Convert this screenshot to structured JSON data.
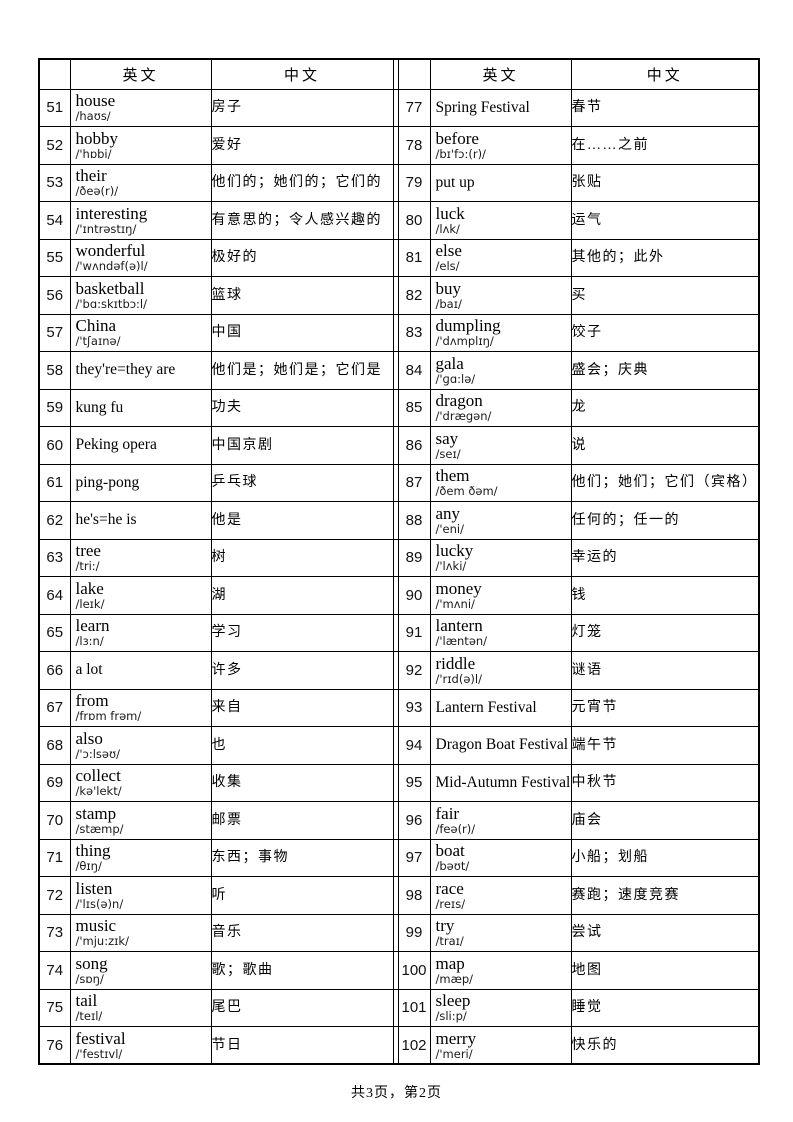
{
  "colors": {
    "background": "#ffffff",
    "border": "#000000",
    "text": "#000000"
  },
  "table": {
    "header": {
      "en": "英文",
      "cn": "中文"
    },
    "left_rows": [
      {
        "n": "51",
        "word": "house",
        "phon": "/haʊs/",
        "cn": "房子"
      },
      {
        "n": "52",
        "word": "hobby",
        "phon": "/'hɒbi/",
        "cn": "爱好"
      },
      {
        "n": "53",
        "word": "their",
        "phon": "/ðeə(r)/",
        "cn": "他们的；她们的；它们的"
      },
      {
        "n": "54",
        "word": "interesting",
        "phon": "/'ɪntrəstɪŋ/",
        "cn": "有意思的；令人感兴趣的"
      },
      {
        "n": "55",
        "word": "wonderful",
        "phon": "/'wʌndəf(ə)l/",
        "cn": "极好的"
      },
      {
        "n": "56",
        "word": "basketball",
        "phon": "/'bɑ:skɪtbɔ:l/",
        "cn": "篮球"
      },
      {
        "n": "57",
        "word": "China",
        "phon": "/'tʃaɪnə/",
        "cn": "中国"
      },
      {
        "n": "58",
        "word": "they're=they are",
        "phon": "",
        "cn": "他们是；她们是；它们是"
      },
      {
        "n": "59",
        "word": "kung fu",
        "phon": "",
        "cn": "功夫"
      },
      {
        "n": "60",
        "word": "Peking opera",
        "phon": "",
        "cn": "中国京剧"
      },
      {
        "n": "61",
        "word": "ping-pong",
        "phon": "",
        "cn": "乒乓球"
      },
      {
        "n": "62",
        "word": "he's=he is",
        "phon": "",
        "cn": "他是"
      },
      {
        "n": "63",
        "word": "tree",
        "phon": "/tri:/",
        "cn": "树"
      },
      {
        "n": "64",
        "word": "lake",
        "phon": "/leɪk/",
        "cn": "湖"
      },
      {
        "n": "65",
        "word": "learn",
        "phon": "/lɜ:n/",
        "cn": "学习"
      },
      {
        "n": "66",
        "word": "a lot",
        "phon": "",
        "cn": "许多"
      },
      {
        "n": "67",
        "word": "from",
        "phon": "/frɒm frəm/",
        "cn": "来自"
      },
      {
        "n": "68",
        "word": "also",
        "phon": "/'ɔ:lsəʊ/",
        "cn": "也"
      },
      {
        "n": "69",
        "word": "collect",
        "phon": "/kə'lekt/",
        "cn": "收集"
      },
      {
        "n": "70",
        "word": "stamp",
        "phon": "/stæmp/",
        "cn": "邮票"
      },
      {
        "n": "71",
        "word": "thing",
        "phon": "/θɪŋ/",
        "cn": "东西；事物"
      },
      {
        "n": "72",
        "word": "listen",
        "phon": "/'lɪs(ə)n/",
        "cn": "听"
      },
      {
        "n": "73",
        "word": "music",
        "phon": "/'mju:zɪk/",
        "cn": "音乐"
      },
      {
        "n": "74",
        "word": "song",
        "phon": "/sɒŋ/",
        "cn": "歌；歌曲"
      },
      {
        "n": "75",
        "word": "tail",
        "phon": "/teɪl/",
        "cn": "尾巴"
      },
      {
        "n": "76",
        "word": "festival",
        "phon": "/'festɪvl/",
        "cn": "节日"
      }
    ],
    "right_rows": [
      {
        "n": "77",
        "word": "Spring Festival",
        "phon": "",
        "cn": "春节"
      },
      {
        "n": "78",
        "word": "before",
        "phon": "/bɪ'fɔ:(r)/",
        "cn": "在……之前"
      },
      {
        "n": "79",
        "word": "put up",
        "phon": "",
        "cn": "张贴"
      },
      {
        "n": "80",
        "word": "luck",
        "phon": "/lʌk/",
        "cn": "运气"
      },
      {
        "n": "81",
        "word": "else",
        "phon": "/els/",
        "cn": "其他的；此外"
      },
      {
        "n": "82",
        "word": "buy",
        "phon": "/baɪ/",
        "cn": "买"
      },
      {
        "n": "83",
        "word": "dumpling",
        "phon": "/'dʌmplɪŋ/",
        "cn": "饺子"
      },
      {
        "n": "84",
        "word": "gala",
        "phon": "/'ɡɑ:lə/",
        "cn": "盛会；庆典"
      },
      {
        "n": "85",
        "word": "dragon",
        "phon": "/'drægən/",
        "cn": "龙"
      },
      {
        "n": "86",
        "word": "say",
        "phon": "/seɪ/",
        "cn": "说"
      },
      {
        "n": "87",
        "word": "them",
        "phon": "/ðem ðəm/",
        "cn": "他们；她们；它们（宾格）"
      },
      {
        "n": "88",
        "word": "any",
        "phon": "/'eni/",
        "cn": "任何的；任一的"
      },
      {
        "n": "89",
        "word": "lucky",
        "phon": "/'lʌki/",
        "cn": "幸运的"
      },
      {
        "n": "90",
        "word": "money",
        "phon": "/'mʌni/",
        "cn": "钱"
      },
      {
        "n": "91",
        "word": "lantern",
        "phon": "/'læntən/",
        "cn": "灯笼"
      },
      {
        "n": "92",
        "word": "riddle",
        "phon": "/'rɪd(ə)l/",
        "cn": "谜语"
      },
      {
        "n": "93",
        "word": "Lantern Festival",
        "phon": "",
        "cn": "元宵节"
      },
      {
        "n": "94",
        "word": "Dragon Boat Festival",
        "phon": "",
        "cn": "端午节"
      },
      {
        "n": "95",
        "word": "Mid-Autumn Festival",
        "phon": "",
        "cn": "中秋节"
      },
      {
        "n": "96",
        "word": "fair",
        "phon": "/feə(r)/",
        "cn": "庙会"
      },
      {
        "n": "97",
        "word": "boat",
        "phon": "/bəʊt/",
        "cn": "小船；划船"
      },
      {
        "n": "98",
        "word": "race",
        "phon": "/reɪs/",
        "cn": "赛跑；速度竞赛"
      },
      {
        "n": "99",
        "word": "try",
        "phon": "/traɪ/",
        "cn": "尝试"
      },
      {
        "n": "100",
        "word": "map",
        "phon": "/mæp/",
        "cn": "地图"
      },
      {
        "n": "101",
        "word": "sleep",
        "phon": "/sli:p/",
        "cn": "睡觉"
      },
      {
        "n": "102",
        "word": "merry",
        "phon": "/'meri/",
        "cn": "快乐的"
      }
    ]
  },
  "footer": {
    "page_info": "共3页，第2页"
  }
}
